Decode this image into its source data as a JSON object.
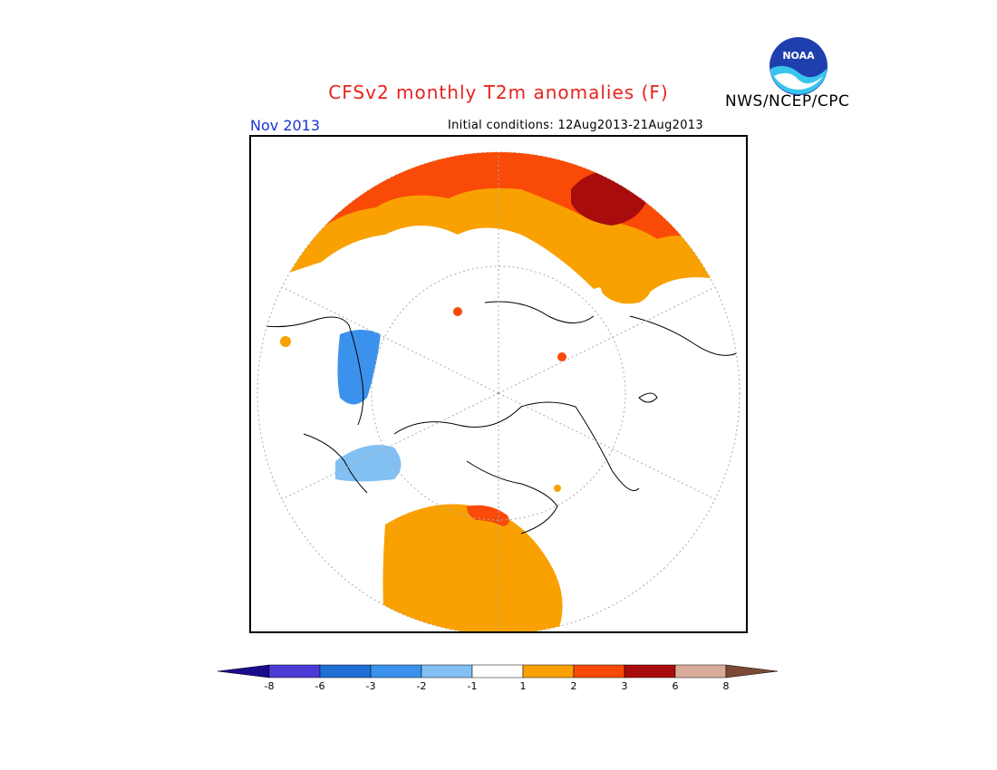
{
  "header": {
    "title": "CFSv2 monthly T2m anomalies (F)",
    "agency": "NWS/NCEP/CPC",
    "month": "Nov 2013",
    "initial_conditions": "Initial conditions: 12Aug2013-21Aug2013",
    "logo_text": "NOAA"
  },
  "legend": {
    "colors": [
      "#1a0a8c",
      "#4b3bd4",
      "#1f6ed6",
      "#3a92ec",
      "#82bff2",
      "#ffffff",
      "#f9a100",
      "#fa4a08",
      "#a80c0c",
      "#d9ab9a",
      "#7a4a36"
    ],
    "ticks": [
      "-8",
      "-6",
      "-3",
      "-2",
      "-1",
      "1",
      "2",
      "3",
      "6",
      "8"
    ]
  },
  "colors": {
    "warm1": "#f9a100",
    "warm2": "#fa4a08",
    "warm3": "#a80c0c",
    "cool1": "#82bff2",
    "cool2": "#3a92ec",
    "title": "#e8221e",
    "month": "#1a34d6"
  }
}
